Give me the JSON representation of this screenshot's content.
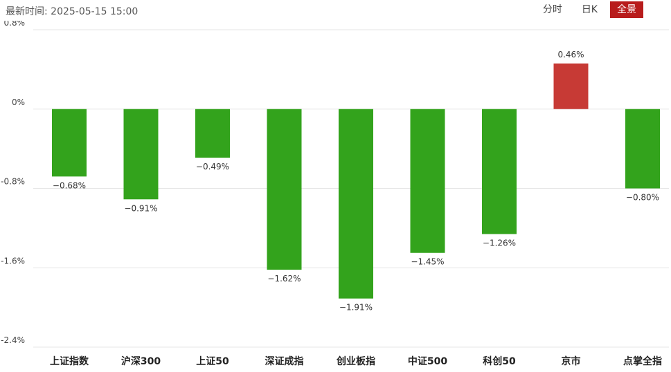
{
  "header": {
    "update_time": "最新时间: 2025-05-15 15:00",
    "tabs": [
      {
        "label": "分时",
        "active": false
      },
      {
        "label": "日K",
        "active": false
      },
      {
        "label": "全景",
        "active": true
      }
    ]
  },
  "colors": {
    "up": "#c73a35",
    "down": "#33a31c",
    "grid": "#e6e6e6",
    "active_tab": "#b81c1c"
  },
  "chart_data": {
    "type": "bar",
    "categories": [
      "上证指数",
      "沪深300",
      "上证50",
      "深证成指",
      "创业板指",
      "中证500",
      "科创50",
      "京市",
      "点掌全指"
    ],
    "values": [
      -0.68,
      -0.91,
      -0.49,
      -1.62,
      -1.91,
      -1.45,
      -1.26,
      0.46,
      -0.8
    ],
    "value_labels": [
      "−0.68%",
      "−0.91%",
      "−0.49%",
      "−1.62%",
      "−1.91%",
      "−1.45%",
      "−1.26%",
      "0.46%",
      "−0.80%"
    ],
    "y_ticks": [
      0.8,
      0,
      -0.8,
      -1.6,
      -2.4
    ],
    "y_tick_labels": [
      "0.8%",
      "0%",
      "-0.8%",
      "-1.6%",
      "-2.4%"
    ],
    "ylim": [
      -2.4,
      0.8
    ],
    "grid": true
  }
}
